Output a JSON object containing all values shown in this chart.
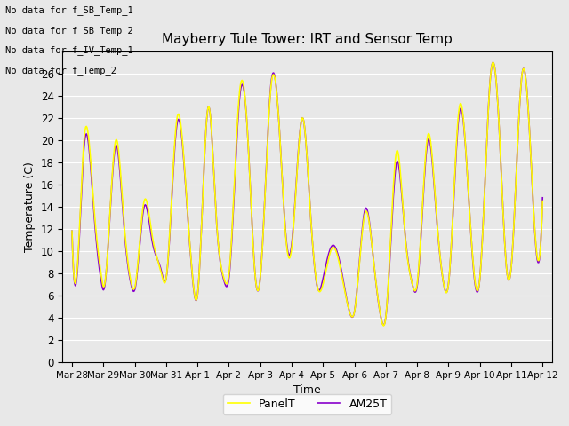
{
  "title": "Mayberry Tule Tower: IRT and Sensor Temp",
  "xlabel": "Time",
  "ylabel": "Temperature (C)",
  "ylim": [
    0,
    28
  ],
  "yticks": [
    0,
    2,
    4,
    6,
    8,
    10,
    12,
    14,
    16,
    18,
    20,
    22,
    24,
    26
  ],
  "panel_color": "#ffff00",
  "am25_color": "#8800cc",
  "line_width": 1.2,
  "legend_labels": [
    "PanelT",
    "AM25T"
  ],
  "no_data_text": [
    "No data for f_SB_Temp_1",
    "No data for f_SB_Temp_2",
    "No data for f_IV_Temp_1",
    "No data for f_Temp_2"
  ],
  "bg_color": "#e8e8e8",
  "fig_bg": "#e8e8e8",
  "xtick_labels": [
    "Mar 28",
    "Mar 29",
    "Mar 30",
    "Mar 31",
    "Apr 1",
    "Apr 2",
    "Apr 3",
    "Apr 4",
    "Apr 5",
    "Apr 6",
    "Apr 7",
    "Apr 8",
    "Apr 9",
    "Apr 10",
    "Apr 11",
    "Apr 12"
  ],
  "title_fontsize": 11,
  "panel_kp_t": [
    0.0,
    0.15,
    0.4,
    0.7,
    0.95,
    1.0,
    1.4,
    1.65,
    1.9,
    2.0,
    2.3,
    2.55,
    2.85,
    3.0,
    3.35,
    3.6,
    3.85,
    4.0,
    4.35,
    4.6,
    4.85,
    5.0,
    5.35,
    5.6,
    5.85,
    6.0,
    6.35,
    6.6,
    6.85,
    7.0,
    7.35,
    7.6,
    7.85,
    8.0,
    8.3,
    8.55,
    8.85,
    9.0,
    9.35,
    9.6,
    9.85,
    10.0,
    10.35,
    10.6,
    10.85,
    11.0,
    11.35,
    11.6,
    11.85,
    12.0,
    12.35,
    12.6,
    12.85,
    13.0,
    13.35,
    13.6,
    13.85,
    14.0,
    14.35,
    14.6,
    14.85,
    15.0
  ],
  "panel_kp_v": [
    11.8,
    7.8,
    20.5,
    14.0,
    7.5,
    6.8,
    20.0,
    13.0,
    7.0,
    6.7,
    14.5,
    11.5,
    8.0,
    7.5,
    22.0,
    17.0,
    7.5,
    6.0,
    23.0,
    13.0,
    7.5,
    7.8,
    24.5,
    20.5,
    7.5,
    7.5,
    25.0,
    21.5,
    10.3,
    10.2,
    22.0,
    13.5,
    6.5,
    7.0,
    10.3,
    8.5,
    4.5,
    4.5,
    13.5,
    9.5,
    4.0,
    4.0,
    19.0,
    12.0,
    7.0,
    7.0,
    20.5,
    14.0,
    7.0,
    7.0,
    23.0,
    17.0,
    7.2,
    7.5,
    26.0,
    22.0,
    8.5,
    8.5,
    26.0,
    20.0,
    9.2,
    14.5
  ],
  "am25_kp_t": [
    0.0,
    0.15,
    0.4,
    0.7,
    0.95,
    1.0,
    1.4,
    1.65,
    1.9,
    2.0,
    2.3,
    2.55,
    2.85,
    3.0,
    3.35,
    3.6,
    3.85,
    4.0,
    4.35,
    4.6,
    4.85,
    5.0,
    5.35,
    5.6,
    5.85,
    6.0,
    6.35,
    6.6,
    6.85,
    7.0,
    7.35,
    7.6,
    7.85,
    8.0,
    8.3,
    8.55,
    8.85,
    9.0,
    9.35,
    9.6,
    9.85,
    10.0,
    10.35,
    10.6,
    10.85,
    11.0,
    11.35,
    11.6,
    11.85,
    12.0,
    12.35,
    12.6,
    12.85,
    13.0,
    13.35,
    13.6,
    13.85,
    14.0,
    14.35,
    14.6,
    14.85,
    15.0
  ],
  "am25_kp_v": [
    11.8,
    7.5,
    19.8,
    13.5,
    7.0,
    6.5,
    19.5,
    12.5,
    6.8,
    6.5,
    14.0,
    11.0,
    8.2,
    7.5,
    21.5,
    16.8,
    7.4,
    6.0,
    23.0,
    13.0,
    7.3,
    7.5,
    24.0,
    20.5,
    7.5,
    7.5,
    25.2,
    21.5,
    10.5,
    10.5,
    22.0,
    13.5,
    6.5,
    7.5,
    10.5,
    8.8,
    4.5,
    4.5,
    13.8,
    9.5,
    4.0,
    4.0,
    18.0,
    12.0,
    7.0,
    6.8,
    20.0,
    13.8,
    7.0,
    7.0,
    22.5,
    17.0,
    7.0,
    7.5,
    26.0,
    22.0,
    8.5,
    8.5,
    26.0,
    20.0,
    9.0,
    14.8
  ]
}
